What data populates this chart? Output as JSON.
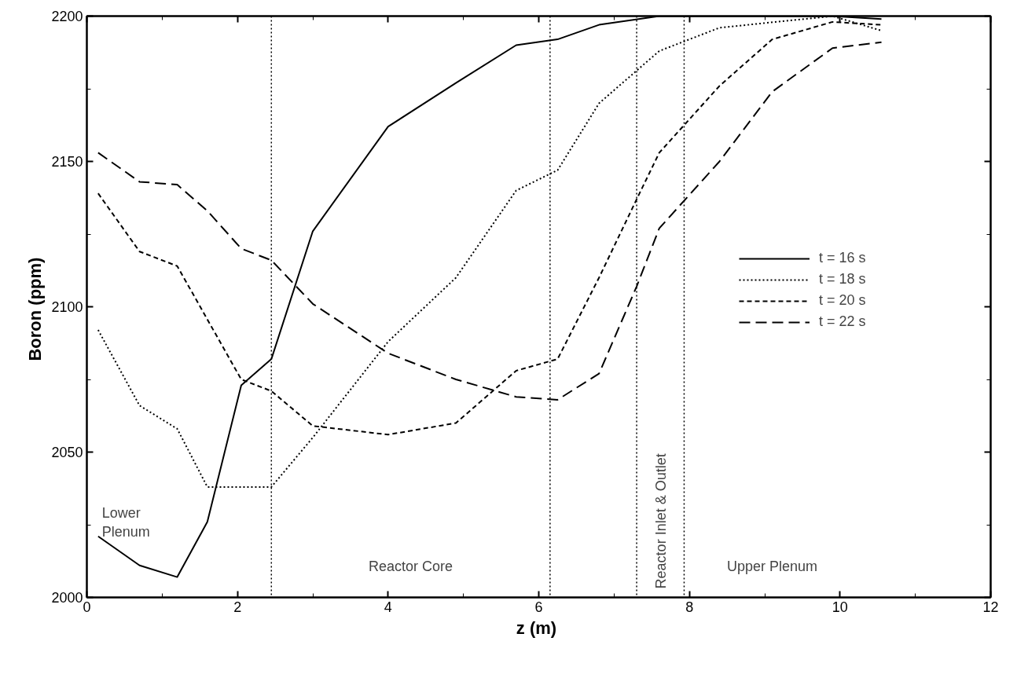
{
  "chart_data": {
    "type": "line",
    "xlabel": "z  (m)",
    "ylabel": "Boron  (ppm)",
    "xlim": [
      0,
      12
    ],
    "xticks": [
      0,
      2,
      4,
      6,
      8,
      10,
      12
    ],
    "ylim": [
      2000,
      2200
    ],
    "yticks": [
      2000,
      2050,
      2100,
      2150,
      2200
    ],
    "grid": false,
    "legend": "right",
    "series": [
      {
        "name": "t = 16 s",
        "color": "#000000",
        "line_style": "solid",
        "x": [
          0.15,
          0.7,
          1.2,
          1.6,
          2.05,
          2.45,
          3.0,
          4.0,
          4.9,
          5.7,
          6.25,
          6.8,
          7.6,
          9.9,
          10.55
        ],
        "values": [
          2021,
          2011,
          2007,
          2026,
          2073,
          2082,
          2126,
          2162,
          2177,
          2190,
          2192,
          2197,
          2200,
          2200,
          2199
        ]
      },
      {
        "name": "t = 18 s",
        "color": "#000000",
        "line_style": "dotted",
        "x": [
          0.15,
          0.7,
          1.2,
          1.6,
          2.45,
          3.0,
          4.0,
          4.9,
          5.7,
          6.25,
          6.8,
          7.6,
          8.4,
          9.9,
          10.55
        ],
        "values": [
          2092,
          2066,
          2058,
          2038,
          2038,
          2055,
          2088,
          2110,
          2140,
          2147,
          2170,
          2188,
          2196,
          2200,
          2195
        ]
      },
      {
        "name": "t = 20 s",
        "color": "#000000",
        "line_style": "dashed",
        "x": [
          0.15,
          0.7,
          1.2,
          2.05,
          2.45,
          3.0,
          4.0,
          4.9,
          5.7,
          6.25,
          6.8,
          7.3,
          7.6,
          8.4,
          9.1,
          9.9,
          10.55
        ],
        "values": [
          2139,
          2119,
          2114,
          2075,
          2071,
          2059,
          2056,
          2060,
          2078,
          2082,
          2110,
          2137,
          2153,
          2176,
          2192,
          2198,
          2197
        ]
      },
      {
        "name": "t = 22 s",
        "color": "#000000",
        "line_style": "longdash",
        "x": [
          0.15,
          0.7,
          1.2,
          1.6,
          2.05,
          2.45,
          3.0,
          4.0,
          4.9,
          5.7,
          6.25,
          6.8,
          7.3,
          7.6,
          8.4,
          9.1,
          9.9,
          10.55
        ],
        "values": [
          2153,
          2143,
          2142,
          2133,
          2120,
          2116,
          2101,
          2084,
          2075,
          2069,
          2068,
          2077,
          2107,
          2127,
          2150,
          2174,
          2189,
          2191
        ]
      }
    ],
    "ref_lines": [
      {
        "axis": "x",
        "value": 2.45,
        "line_style": "dotted",
        "color": "#000000"
      },
      {
        "axis": "x",
        "value": 6.15,
        "line_style": "dotted",
        "color": "#000000"
      },
      {
        "axis": "x",
        "value": 7.3,
        "line_style": "dotted",
        "color": "#000000"
      },
      {
        "axis": "x",
        "value": 7.93,
        "line_style": "dotted",
        "color": "#000000"
      }
    ],
    "annotations": [
      "Lower\nPlenum",
      "Reactor Core",
      "Reactor Inlet & Outlet",
      "Upper Plenum"
    ]
  }
}
